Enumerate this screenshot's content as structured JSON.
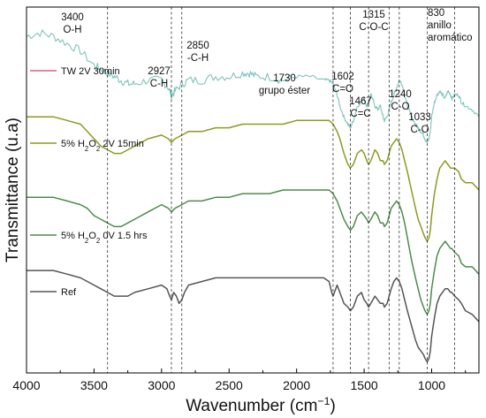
{
  "chart_data": {
    "type": "line",
    "title": "",
    "xlabel": "Wavenumber (cm⁻¹)",
    "xlabel_parts": [
      "Wavenumber (cm",
      "−1",
      ")"
    ],
    "ylabel": "Transmittance (u.a)",
    "x_reversed": true,
    "xlim": [
      4000,
      650
    ],
    "x_ticks": [
      4000,
      3500,
      3000,
      2500,
      2000,
      1500,
      1000
    ],
    "y_ticks": "none",
    "grid": false,
    "series": [
      {
        "name": "TW 2V 30min",
        "name_parts": [
          "TW 2V 30min"
        ],
        "color": "#7fc4bb",
        "legend_color": "#e0607e",
        "noisy": true,
        "x": [
          4000,
          3900,
          3800,
          3700,
          3600,
          3500,
          3450,
          3400,
          3350,
          3300,
          3250,
          3200,
          3100,
          3000,
          2950,
          2927,
          2900,
          2850,
          2800,
          2700,
          2600,
          2500,
          2400,
          2350,
          2300,
          2200,
          2100,
          2000,
          1900,
          1800,
          1760,
          1730,
          1700,
          1680,
          1650,
          1620,
          1602,
          1580,
          1550,
          1500,
          1480,
          1467,
          1450,
          1420,
          1400,
          1380,
          1360,
          1350,
          1330,
          1315,
          1300,
          1280,
          1260,
          1240,
          1220,
          1200,
          1180,
          1150,
          1120,
          1100,
          1080,
          1060,
          1050,
          1033,
          1020,
          1010,
          1000,
          980,
          960,
          940,
          920,
          900,
          880,
          860,
          850,
          830,
          800,
          780,
          750,
          700,
          650
        ],
        "y": [
          0.92,
          0.93,
          0.92,
          0.9,
          0.88,
          0.84,
          0.83,
          0.82,
          0.81,
          0.8,
          0.79,
          0.79,
          0.8,
          0.8,
          0.78,
          0.76,
          0.77,
          0.79,
          0.8,
          0.8,
          0.81,
          0.81,
          0.82,
          0.82,
          0.81,
          0.81,
          0.8,
          0.81,
          0.81,
          0.8,
          0.8,
          0.79,
          0.76,
          0.73,
          0.7,
          0.68,
          0.67,
          0.69,
          0.73,
          0.75,
          0.73,
          0.74,
          0.76,
          0.73,
          0.72,
          0.73,
          0.7,
          0.69,
          0.7,
          0.72,
          0.74,
          0.76,
          0.78,
          0.8,
          0.79,
          0.76,
          0.73,
          0.7,
          0.68,
          0.67,
          0.66,
          0.65,
          0.64,
          0.63,
          0.64,
          0.66,
          0.7,
          0.74,
          0.76,
          0.77,
          0.76,
          0.75,
          0.77,
          0.76,
          0.75,
          0.76,
          0.76,
          0.74,
          0.73,
          0.72,
          0.7
        ]
      },
      {
        "name": "5% H2O2 2V 15min",
        "name_parts": [
          "5% H",
          "2",
          "O",
          "2",
          " 2V 15min"
        ],
        "color": "#8f9a20",
        "x": [
          4000,
          3900,
          3800,
          3700,
          3600,
          3550,
          3500,
          3450,
          3400,
          3350,
          3300,
          3250,
          3200,
          3100,
          3000,
          2950,
          2927,
          2900,
          2850,
          2800,
          2700,
          2600,
          2500,
          2400,
          2300,
          2200,
          2100,
          2000,
          1900,
          1800,
          1760,
          1730,
          1700,
          1680,
          1650,
          1620,
          1602,
          1580,
          1550,
          1520,
          1500,
          1480,
          1467,
          1450,
          1420,
          1400,
          1380,
          1360,
          1350,
          1330,
          1315,
          1300,
          1280,
          1260,
          1240,
          1220,
          1200,
          1180,
          1150,
          1120,
          1100,
          1080,
          1060,
          1050,
          1033,
          1020,
          1010,
          1000,
          980,
          960,
          940,
          920,
          900,
          880,
          860,
          850,
          830,
          800,
          780,
          750,
          700,
          650
        ],
        "y": [
          0.7,
          0.7,
          0.7,
          0.69,
          0.68,
          0.66,
          0.64,
          0.62,
          0.61,
          0.6,
          0.6,
          0.61,
          0.62,
          0.64,
          0.65,
          0.64,
          0.63,
          0.64,
          0.65,
          0.66,
          0.66,
          0.67,
          0.67,
          0.68,
          0.68,
          0.68,
          0.68,
          0.69,
          0.69,
          0.69,
          0.69,
          0.68,
          0.66,
          0.64,
          0.6,
          0.57,
          0.56,
          0.57,
          0.6,
          0.61,
          0.6,
          0.58,
          0.57,
          0.58,
          0.61,
          0.6,
          0.58,
          0.58,
          0.57,
          0.58,
          0.6,
          0.62,
          0.63,
          0.64,
          0.63,
          0.61,
          0.58,
          0.55,
          0.5,
          0.45,
          0.42,
          0.4,
          0.38,
          0.37,
          0.36,
          0.37,
          0.39,
          0.43,
          0.49,
          0.53,
          0.56,
          0.57,
          0.58,
          0.57,
          0.56,
          0.56,
          0.56,
          0.55,
          0.53,
          0.52,
          0.52,
          0.5
        ]
      },
      {
        "name": "5% H2O2 0V 1.5 hrs",
        "name_parts": [
          "5% H",
          "2",
          "O",
          "2",
          " 0V 1.5 hrs"
        ],
        "color": "#4f8a4f",
        "x": [
          4000,
          3900,
          3800,
          3700,
          3600,
          3550,
          3500,
          3450,
          3400,
          3350,
          3300,
          3250,
          3200,
          3100,
          3000,
          2950,
          2927,
          2900,
          2850,
          2800,
          2700,
          2600,
          2500,
          2400,
          2300,
          2200,
          2100,
          2000,
          1900,
          1800,
          1760,
          1730,
          1700,
          1680,
          1650,
          1620,
          1602,
          1580,
          1550,
          1520,
          1500,
          1480,
          1467,
          1450,
          1420,
          1400,
          1380,
          1360,
          1350,
          1330,
          1315,
          1300,
          1280,
          1260,
          1240,
          1220,
          1200,
          1180,
          1150,
          1120,
          1100,
          1080,
          1060,
          1050,
          1033,
          1020,
          1010,
          1000,
          980,
          960,
          940,
          920,
          900,
          880,
          860,
          850,
          830,
          800,
          780,
          750,
          700,
          650
        ],
        "y": [
          0.48,
          0.48,
          0.48,
          0.47,
          0.46,
          0.45,
          0.43,
          0.42,
          0.41,
          0.4,
          0.4,
          0.41,
          0.42,
          0.44,
          0.46,
          0.45,
          0.44,
          0.45,
          0.46,
          0.47,
          0.47,
          0.48,
          0.48,
          0.49,
          0.49,
          0.49,
          0.5,
          0.5,
          0.5,
          0.5,
          0.5,
          0.49,
          0.47,
          0.45,
          0.42,
          0.4,
          0.39,
          0.4,
          0.43,
          0.44,
          0.43,
          0.42,
          0.41,
          0.42,
          0.44,
          0.43,
          0.41,
          0.41,
          0.4,
          0.41,
          0.43,
          0.45,
          0.46,
          0.47,
          0.46,
          0.44,
          0.41,
          0.37,
          0.31,
          0.26,
          0.23,
          0.2,
          0.18,
          0.17,
          0.16,
          0.17,
          0.19,
          0.23,
          0.28,
          0.32,
          0.34,
          0.35,
          0.36,
          0.35,
          0.34,
          0.34,
          0.33,
          0.32,
          0.3,
          0.29,
          0.29,
          0.27
        ]
      },
      {
        "name": "Ref",
        "name_parts": [
          "Ref"
        ],
        "color": "#555555",
        "x": [
          4000,
          3900,
          3800,
          3700,
          3600,
          3550,
          3500,
          3450,
          3400,
          3350,
          3300,
          3250,
          3200,
          3100,
          3000,
          2960,
          2940,
          2927,
          2910,
          2890,
          2870,
          2850,
          2830,
          2800,
          2700,
          2600,
          2500,
          2400,
          2300,
          2200,
          2100,
          2000,
          1900,
          1800,
          1760,
          1740,
          1730,
          1720,
          1700,
          1680,
          1650,
          1620,
          1602,
          1580,
          1550,
          1520,
          1500,
          1480,
          1467,
          1450,
          1420,
          1400,
          1380,
          1360,
          1350,
          1330,
          1315,
          1300,
          1280,
          1260,
          1240,
          1220,
          1200,
          1180,
          1150,
          1120,
          1100,
          1080,
          1060,
          1050,
          1033,
          1020,
          1010,
          1000,
          980,
          960,
          940,
          920,
          900,
          880,
          860,
          850,
          830,
          800,
          780,
          750,
          700,
          650
        ],
        "y": [
          0.28,
          0.28,
          0.28,
          0.27,
          0.26,
          0.25,
          0.24,
          0.23,
          0.22,
          0.21,
          0.21,
          0.21,
          0.22,
          0.23,
          0.24,
          0.23,
          0.21,
          0.2,
          0.22,
          0.21,
          0.19,
          0.2,
          0.22,
          0.24,
          0.25,
          0.26,
          0.26,
          0.26,
          0.26,
          0.26,
          0.26,
          0.26,
          0.26,
          0.26,
          0.25,
          0.22,
          0.21,
          0.22,
          0.24,
          0.22,
          0.19,
          0.18,
          0.17,
          0.18,
          0.21,
          0.22,
          0.2,
          0.19,
          0.18,
          0.19,
          0.21,
          0.2,
          0.19,
          0.19,
          0.18,
          0.19,
          0.21,
          0.23,
          0.25,
          0.26,
          0.25,
          0.23,
          0.2,
          0.17,
          0.13,
          0.09,
          0.07,
          0.06,
          0.05,
          0.04,
          0.03,
          0.04,
          0.06,
          0.1,
          0.15,
          0.19,
          0.21,
          0.22,
          0.23,
          0.23,
          0.22,
          0.22,
          0.21,
          0.2,
          0.19,
          0.17,
          0.16,
          0.14
        ]
      }
    ],
    "reference_lines": [
      3400,
      2927,
      2850,
      1730,
      1602,
      1467,
      1315,
      1240,
      1033,
      830
    ],
    "annotations": [
      {
        "lines": [
          "3400",
          "O-H"
        ]
      },
      {
        "lines": [
          "2927",
          "C-H"
        ]
      },
      {
        "lines": [
          "2850",
          "-C-H"
        ]
      },
      {
        "lines": [
          "1730",
          "grupo éster"
        ]
      },
      {
        "lines": [
          "1602",
          "C=O"
        ]
      },
      {
        "lines": [
          "1467",
          "C=C"
        ]
      },
      {
        "lines": [
          "1315",
          "C-O-C"
        ]
      },
      {
        "lines": [
          "1240",
          "C-O"
        ]
      },
      {
        "lines": [
          "1033",
          "C-O"
        ]
      },
      {
        "lines": [
          "830",
          "anillo",
          "aromático"
        ]
      }
    ]
  }
}
